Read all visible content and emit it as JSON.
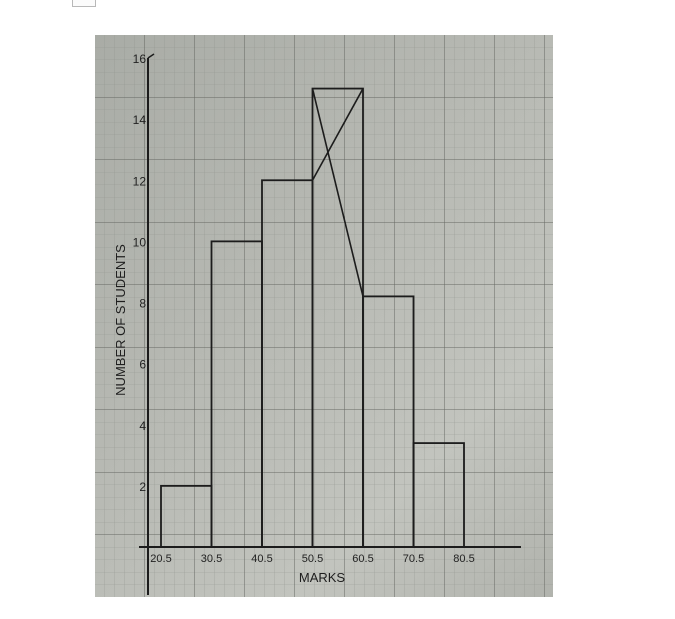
{
  "chart_data": {
    "type": "histogram",
    "title": "",
    "xlabel": "MARKS",
    "ylabel": "NUMBER OF STUDENTS",
    "x_ticks": [
      "20.5",
      "30.5",
      "40.5",
      "50.5",
      "60.5",
      "70.5",
      "80.5"
    ],
    "y_ticks": [
      "2",
      "4",
      "6",
      "8",
      "10",
      "12",
      "14",
      "16"
    ],
    "y_tick_values": [
      2,
      4,
      6,
      8,
      10,
      12,
      14,
      16
    ],
    "ylim": [
      0,
      16
    ],
    "bins": [
      {
        "from": 20.5,
        "to": 30.5,
        "value": 2
      },
      {
        "from": 30.5,
        "to": 40.5,
        "value": 10
      },
      {
        "from": 40.5,
        "to": 50.5,
        "value": 12
      },
      {
        "from": 50.5,
        "to": 60.5,
        "value": 15
      },
      {
        "from": 60.5,
        "to": 70.5,
        "value": 8.2
      },
      {
        "from": 70.5,
        "to": 80.5,
        "value": 3.4
      }
    ],
    "mode_construction": "crossed lines drawn inside the tallest bar to the corners of the adjacent bars",
    "grid": true,
    "colors": {
      "paper": "#b6b8b2",
      "grid_minor": "#8c8f89",
      "grid_major": "#5e605b",
      "ink": "#1c1c1c"
    }
  }
}
